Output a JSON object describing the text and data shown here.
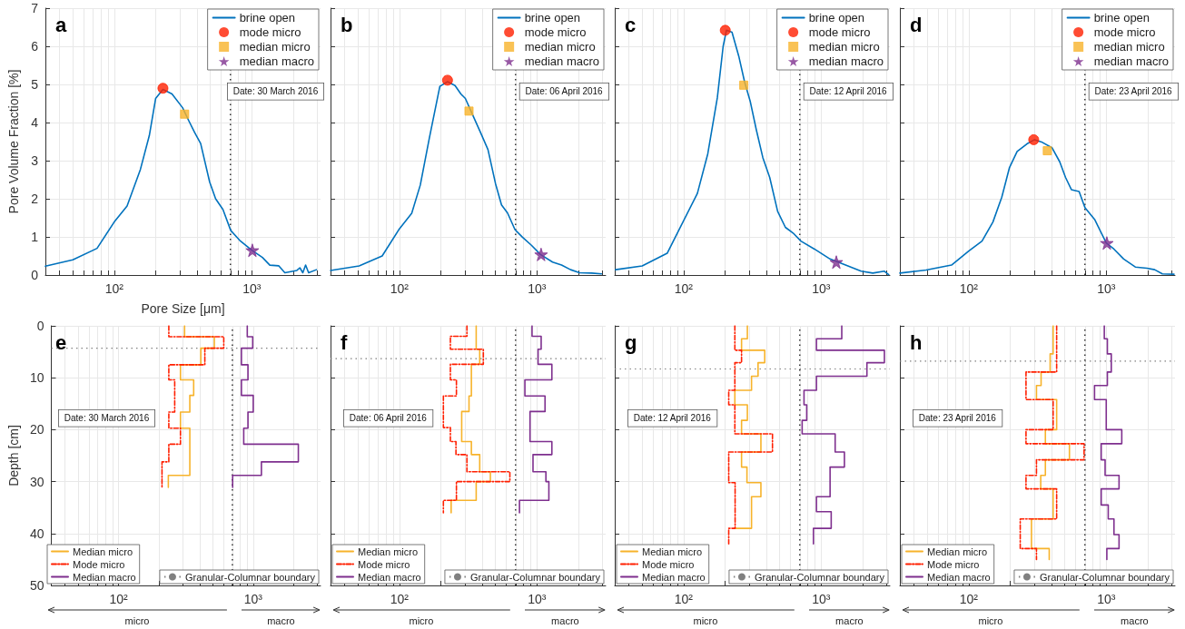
{
  "chart_data": [
    {
      "type": "line",
      "title": "a",
      "xlabel": "Pore Size [μm]",
      "ylabel": "Pore Volume Fraction [%]",
      "log": "x",
      "grid": true,
      "legend": "top right",
      "xlim": [
        31.6,
        3162
      ],
      "ylim": [
        0,
        7
      ],
      "xticks": [
        {
          "value": 40,
          "label": null
        },
        {
          "value": 50,
          "label": null
        },
        {
          "value": 60,
          "label": null
        },
        {
          "value": 70,
          "label": null
        },
        {
          "value": 80,
          "label": null
        },
        {
          "value": 90,
          "label": null
        },
        {
          "value": 100,
          "label": "10²"
        },
        {
          "value": 200,
          "label": null
        },
        {
          "value": 300,
          "label": null
        },
        {
          "value": 400,
          "label": null
        },
        {
          "value": 500,
          "label": null
        },
        {
          "value": 600,
          "label": null
        },
        {
          "value": 700,
          "label": null
        },
        {
          "value": 800,
          "label": null
        },
        {
          "value": 900,
          "label": null
        },
        {
          "value": 1000,
          "label": "10³"
        },
        {
          "value": 2000,
          "label": null
        },
        {
          "value": 3000,
          "label": null
        }
      ],
      "yticks": [
        0,
        1,
        2,
        3,
        4,
        5,
        6,
        7
      ],
      "series": [
        {
          "name": "brine open",
          "color": "#0072bd",
          "marker": "none",
          "x": [
            31.6,
            50,
            75,
            100,
            124,
            155,
            180,
            200,
            226,
            263,
            314,
            347,
            384,
            425,
            494,
            546,
            617,
            703,
            817,
            1000,
            1195,
            1353,
            1574,
            1740,
            2128,
            2237,
            2350,
            2463,
            2590,
            2950
          ],
          "values": [
            0.23,
            0.4,
            0.7,
            1.39,
            1.81,
            2.77,
            3.66,
            4.63,
            4.87,
            4.75,
            4.39,
            4.06,
            3.74,
            3.45,
            2.44,
            2.0,
            1.72,
            1.17,
            0.91,
            0.65,
            0.46,
            0.26,
            0.24,
            0.06,
            0.12,
            0.19,
            0.06,
            0.26,
            0.06,
            0.14
          ]
        },
        {
          "name": "mode micro",
          "type": "scatter",
          "color": "#ff1f00",
          "marker": "circle",
          "x": [
            226
          ],
          "values": [
            4.9
          ]
        },
        {
          "name": "median micro",
          "type": "scatter",
          "color": "#f7b32b",
          "marker": "square",
          "x": [
            325
          ],
          "values": [
            4.22
          ]
        },
        {
          "name": "median macro",
          "type": "scatter",
          "color": "#7e2f8e",
          "marker": "star",
          "x": [
            1010
          ],
          "values": [
            0.65
          ]
        }
      ],
      "ref_lines": [
        {
          "axis": "x",
          "value": 700,
          "color": "#000000",
          "line_style": "dotted"
        }
      ],
      "annotations": [
        "Date: 30 March 2016"
      ]
    },
    {
      "type": "line",
      "title": "b",
      "log": "x",
      "grid": true,
      "legend": "top right",
      "tick_labels": "x",
      "xlim": [
        31.6,
        3162
      ],
      "ylim": [
        0,
        7
      ],
      "xticks": [
        {
          "value": 40,
          "label": null
        },
        {
          "value": 50,
          "label": null
        },
        {
          "value": 60,
          "label": null
        },
        {
          "value": 70,
          "label": null
        },
        {
          "value": 80,
          "label": null
        },
        {
          "value": 90,
          "label": null
        },
        {
          "value": 100,
          "label": "10²"
        },
        {
          "value": 200,
          "label": null
        },
        {
          "value": 300,
          "label": null
        },
        {
          "value": 400,
          "label": null
        },
        {
          "value": 500,
          "label": null
        },
        {
          "value": 600,
          "label": null
        },
        {
          "value": 700,
          "label": null
        },
        {
          "value": 800,
          "label": null
        },
        {
          "value": 900,
          "label": null
        },
        {
          "value": 1000,
          "label": "10³"
        },
        {
          "value": 2000,
          "label": null
        },
        {
          "value": 3000,
          "label": null
        }
      ],
      "yticks": [
        0,
        1,
        2,
        3,
        4,
        5,
        6,
        7
      ],
      "series": [
        {
          "name": "brine open",
          "color": "#0072bd",
          "marker": "none",
          "x": [
            31.6,
            51,
            75,
            100,
            123,
            142,
            165,
            197,
            224,
            254,
            280,
            302,
            343,
            389,
            441,
            500,
            553,
            611,
            693,
            786,
            913,
            1062,
            1300,
            1511,
            1757,
            2043,
            2500,
            2950
          ],
          "values": [
            0.12,
            0.24,
            0.5,
            1.21,
            1.62,
            2.36,
            3.58,
            4.95,
            5.07,
            4.97,
            4.75,
            4.63,
            4.18,
            3.74,
            3.29,
            2.4,
            1.84,
            1.63,
            1.19,
            0.99,
            0.78,
            0.54,
            0.34,
            0.26,
            0.14,
            0.06,
            0.05,
            0.03
          ]
        },
        {
          "name": "mode micro",
          "type": "scatter",
          "color": "#ff1f00",
          "marker": "circle",
          "x": [
            224
          ],
          "values": [
            5.11
          ]
        },
        {
          "name": "median micro",
          "type": "scatter",
          "color": "#f7b32b",
          "marker": "square",
          "x": [
            321
          ],
          "values": [
            4.3
          ]
        },
        {
          "name": "median macro",
          "type": "scatter",
          "color": "#7e2f8e",
          "marker": "star",
          "x": [
            1073
          ],
          "values": [
            0.54
          ]
        }
      ],
      "ref_lines": [
        {
          "axis": "x",
          "value": 700,
          "color": "#000000",
          "line_style": "dotted"
        }
      ],
      "annotations": [
        "Date: 06 April 2016"
      ]
    },
    {
      "type": "line",
      "title": "c",
      "log": "x",
      "grid": true,
      "legend": "top right",
      "tick_labels": "x",
      "xlim": [
        31.6,
        3162
      ],
      "ylim": [
        0,
        7
      ],
      "xticks": [
        {
          "value": 40,
          "label": null
        },
        {
          "value": 50,
          "label": null
        },
        {
          "value": 60,
          "label": null
        },
        {
          "value": 70,
          "label": null
        },
        {
          "value": 80,
          "label": null
        },
        {
          "value": 90,
          "label": null
        },
        {
          "value": 100,
          "label": "10²"
        },
        {
          "value": 200,
          "label": null
        },
        {
          "value": 300,
          "label": null
        },
        {
          "value": 400,
          "label": null
        },
        {
          "value": 500,
          "label": null
        },
        {
          "value": 600,
          "label": null
        },
        {
          "value": 700,
          "label": null
        },
        {
          "value": 800,
          "label": null
        },
        {
          "value": 900,
          "label": null
        },
        {
          "value": 1000,
          "label": "10³"
        },
        {
          "value": 2000,
          "label": null
        },
        {
          "value": 3000,
          "label": null
        }
      ],
      "yticks": [
        0,
        1,
        2,
        3,
        4,
        5,
        6,
        7
      ],
      "series": [
        {
          "name": "brine open",
          "color": "#0072bd",
          "marker": "none",
          "x": [
            32,
            50,
            76,
            126,
            150,
            176,
            194,
            205,
            225,
            252,
            278,
            306,
            338,
            377,
            423,
            483,
            550,
            626,
            713,
            895,
            1161,
            1507,
            1954,
            2376,
            2884,
            3100
          ],
          "values": [
            0.14,
            0.24,
            0.57,
            2.14,
            3.18,
            4.65,
            6.0,
            6.42,
            6.37,
            5.74,
            5.06,
            4.54,
            3.81,
            3.08,
            2.56,
            1.67,
            1.25,
            1.1,
            0.89,
            0.68,
            0.42,
            0.26,
            0.1,
            0.05,
            0.1,
            0.01
          ]
        },
        {
          "name": "mode micro",
          "type": "scatter",
          "color": "#ff1f00",
          "marker": "circle",
          "x": [
            201
          ],
          "values": [
            6.42
          ]
        },
        {
          "name": "median micro",
          "type": "scatter",
          "color": "#f7b32b",
          "marker": "square",
          "x": [
            274
          ],
          "values": [
            4.98
          ]
        },
        {
          "name": "median macro",
          "type": "scatter",
          "color": "#7e2f8e",
          "marker": "star",
          "x": [
            1290
          ],
          "values": [
            0.34
          ]
        }
      ],
      "ref_lines": [
        {
          "axis": "x",
          "value": 700,
          "color": "#000000",
          "line_style": "dotted"
        }
      ],
      "annotations": [
        "Date: 12 April 2016"
      ]
    },
    {
      "type": "line",
      "title": "d",
      "log": "x",
      "grid": true,
      "legend": "top right",
      "tick_labels": "x",
      "xlim": [
        31.6,
        3162
      ],
      "ylim": [
        0,
        7
      ],
      "xticks": [
        {
          "value": 40,
          "label": null
        },
        {
          "value": 50,
          "label": null
        },
        {
          "value": 60,
          "label": null
        },
        {
          "value": 70,
          "label": null
        },
        {
          "value": 80,
          "label": null
        },
        {
          "value": 90,
          "label": null
        },
        {
          "value": 100,
          "label": "10²"
        },
        {
          "value": 200,
          "label": null
        },
        {
          "value": 300,
          "label": null
        },
        {
          "value": 400,
          "label": null
        },
        {
          "value": 500,
          "label": null
        },
        {
          "value": 600,
          "label": null
        },
        {
          "value": 700,
          "label": null
        },
        {
          "value": 800,
          "label": null
        },
        {
          "value": 900,
          "label": null
        },
        {
          "value": 1000,
          "label": "10³"
        },
        {
          "value": 2000,
          "label": null
        },
        {
          "value": 3000,
          "label": null
        }
      ],
      "yticks": [
        0,
        1,
        2,
        3,
        4,
        5,
        6,
        7
      ],
      "series": [
        {
          "name": "brine open",
          "color": "#0072bd",
          "marker": "none",
          "x": [
            31.6,
            49,
            75,
            100,
            125,
            150,
            174,
            198,
            225,
            265,
            301,
            343,
            403,
            459,
            506,
            558,
            635,
            700,
            823,
            1000,
            1138,
            1339,
            1627,
            1976,
            2250,
            2560,
            3110
          ],
          "values": [
            0.05,
            0.13,
            0.26,
            0.63,
            0.89,
            1.39,
            2.04,
            2.82,
            3.24,
            3.44,
            3.55,
            3.48,
            3.34,
            2.97,
            2.56,
            2.24,
            2.19,
            1.77,
            1.46,
            0.84,
            0.68,
            0.42,
            0.21,
            0.18,
            0.14,
            0.03,
            0.02
          ]
        },
        {
          "name": "mode micro",
          "type": "scatter",
          "color": "#ff1f00",
          "marker": "circle",
          "x": [
            297
          ],
          "values": [
            3.55
          ]
        },
        {
          "name": "median micro",
          "type": "scatter",
          "color": "#f7b32b",
          "marker": "square",
          "x": [
            373
          ],
          "values": [
            3.26
          ]
        },
        {
          "name": "median macro",
          "type": "scatter",
          "color": "#7e2f8e",
          "marker": "star",
          "x": [
            1010
          ],
          "values": [
            0.84
          ]
        }
      ],
      "ref_lines": [
        {
          "axis": "x",
          "value": 700,
          "color": "#000000",
          "line_style": "dotted"
        }
      ],
      "annotations": [
        "Date: 23 April 2016"
      ]
    },
    {
      "type": "line",
      "title": "e",
      "ylabel": "Depth [cm]",
      "log": "x",
      "grid": true,
      "legend": "bottom",
      "xlim": [
        31.6,
        3162
      ],
      "ylim": [
        50,
        0
      ],
      "xticks": [
        {
          "value": 40,
          "label": null
        },
        {
          "value": 50,
          "label": null
        },
        {
          "value": 60,
          "label": null
        },
        {
          "value": 70,
          "label": null
        },
        {
          "value": 80,
          "label": null
        },
        {
          "value": 90,
          "label": null
        },
        {
          "value": 100,
          "label": "10²"
        },
        {
          "value": 200,
          "label": null
        },
        {
          "value": 300,
          "label": null
        },
        {
          "value": 400,
          "label": null
        },
        {
          "value": 500,
          "label": null
        },
        {
          "value": 600,
          "label": null
        },
        {
          "value": 700,
          "label": null
        },
        {
          "value": 800,
          "label": null
        },
        {
          "value": 900,
          "label": null
        },
        {
          "value": 1000,
          "label": "10³"
        },
        {
          "value": 2000,
          "label": null
        },
        {
          "value": 3000,
          "label": null
        }
      ],
      "yticks": [
        0,
        10,
        20,
        30,
        40,
        50
      ],
      "series": [
        {
          "name": "Median micro",
          "color": "#f7b32b",
          "line_style": "solid",
          "x": [
            309,
            309,
            514,
            514,
            408,
            408,
            288,
            288,
            361,
            361,
            338,
            338,
            288,
            288,
            338,
            338,
            234,
            234
          ],
          "values": [
            0,
            2.1,
            2.1,
            4.3,
            4.3,
            7.5,
            7.5,
            10.4,
            10.4,
            13.4,
            13.4,
            16.6,
            16.6,
            19.7,
            19.7,
            28.8,
            28.8,
            31.1
          ]
        },
        {
          "name": "Mode micro",
          "color": "#ff1f00",
          "line_style": "dashed",
          "x": [
            236,
            236,
            604,
            604,
            437,
            437,
            236,
            236,
            261,
            261,
            236,
            236,
            288,
            288,
            236,
            236,
            210,
            210
          ],
          "values": [
            0,
            2.1,
            2.1,
            4.3,
            4.3,
            7.5,
            7.5,
            10.4,
            10.4,
            16.6,
            16.6,
            19.7,
            19.7,
            22.8,
            22.8,
            26.2,
            26.2,
            31.1
          ]
        },
        {
          "name": "Median macro",
          "color": "#7e2f8e",
          "line_style": "solid",
          "x": [
            903,
            903,
            991,
            991,
            817,
            817,
            914,
            914,
            817,
            817,
            1000,
            1000,
            914,
            914,
            850,
            850,
            2163,
            2163,
            1150,
            1150,
            703,
            703
          ],
          "values": [
            0,
            2.1,
            2.1,
            4.3,
            4.3,
            7.5,
            7.5,
            10.4,
            10.4,
            13.4,
            13.4,
            16.6,
            16.6,
            19.7,
            19.7,
            22.8,
            22.8,
            26.2,
            26.2,
            28.8,
            28.8,
            31.1
          ]
        }
      ],
      "ref_lines": [
        {
          "axis": "x",
          "value": 700,
          "color": "#000000",
          "line_style": "dotted"
        },
        {
          "axis": "y",
          "value": 4.3,
          "label": "Granular-Columnar boundary",
          "color": "#808080",
          "line_style": "dotted"
        }
      ],
      "annotations": [
        "Date: 30 March 2016",
        "micro",
        "macro"
      ]
    },
    {
      "type": "line",
      "title": "f",
      "log": "x",
      "grid": true,
      "legend": "bottom",
      "tick_labels": "x",
      "xlim": [
        31.6,
        3162
      ],
      "ylim": [
        50,
        0
      ],
      "xticks": [
        {
          "value": 40,
          "label": null
        },
        {
          "value": 50,
          "label": null
        },
        {
          "value": 60,
          "label": null
        },
        {
          "value": 70,
          "label": null
        },
        {
          "value": 80,
          "label": null
        },
        {
          "value": 90,
          "label": null
        },
        {
          "value": 100,
          "label": "10²"
        },
        {
          "value": 200,
          "label": null
        },
        {
          "value": 300,
          "label": null
        },
        {
          "value": 400,
          "label": null
        },
        {
          "value": 500,
          "label": null
        },
        {
          "value": 600,
          "label": null
        },
        {
          "value": 700,
          "label": null
        },
        {
          "value": 800,
          "label": null
        },
        {
          "value": 900,
          "label": null
        },
        {
          "value": 1000,
          "label": "10³"
        },
        {
          "value": 2000,
          "label": null
        },
        {
          "value": 3000,
          "label": null
        }
      ],
      "yticks": [
        0,
        10,
        20,
        30,
        40,
        50
      ],
      "series": [
        {
          "name": "Median micro",
          "color": "#f7b32b",
          "line_style": "solid",
          "x": [
            362,
            362,
            384,
            384,
            334,
            334,
            321,
            321,
            284,
            284,
            334,
            334,
            384,
            384,
            459,
            459,
            362,
            362,
            238,
            238
          ],
          "values": [
            0,
            4.5,
            4.5,
            7.4,
            7.4,
            13.5,
            13.5,
            16.5,
            16.5,
            22.3,
            22.3,
            24.8,
            24.8,
            28.1,
            28.1,
            30,
            30,
            33.6,
            33.6,
            36
          ]
        },
        {
          "name": "Mode micro",
          "color": "#ff1f00",
          "line_style": "dashed",
          "x": [
            310,
            310,
            235,
            235,
            408,
            408,
            235,
            235,
            260,
            260,
            209,
            209,
            235,
            235,
            258,
            258,
            310,
            310,
            636,
            636,
            260,
            260,
            209,
            209
          ],
          "values": [
            0,
            2,
            2,
            4.5,
            4.5,
            7.4,
            7.4,
            10.4,
            10.4,
            13.5,
            13.5,
            19.6,
            19.6,
            22.3,
            22.3,
            24.8,
            24.8,
            28.1,
            28.1,
            30,
            30,
            33.6,
            33.6,
            36
          ]
        },
        {
          "name": "Median macro",
          "color": "#7e2f8e",
          "line_style": "solid",
          "x": [
            922,
            922,
            1074,
            1074,
            1020,
            1020,
            1285,
            1285,
            818,
            818,
            1146,
            1146,
            891,
            891,
            1285,
            1285,
            937,
            937,
            1163,
            1163,
            1222,
            1222,
            747,
            747
          ],
          "values": [
            0,
            2,
            2,
            4.5,
            4.5,
            7.4,
            7.4,
            10.4,
            10.4,
            13.5,
            13.5,
            16.5,
            16.5,
            22.3,
            22.3,
            24.8,
            24.8,
            28.1,
            28.1,
            30,
            30,
            33.6,
            33.6,
            36
          ]
        }
      ],
      "ref_lines": [
        {
          "axis": "x",
          "value": 700,
          "color": "#000000",
          "line_style": "dotted"
        },
        {
          "axis": "y",
          "value": 6.3,
          "label": "Granular-Columnar boundary",
          "color": "#808080",
          "line_style": "dotted"
        }
      ],
      "annotations": [
        "Date: 06 April 2016",
        "micro",
        "macro"
      ]
    },
    {
      "type": "line",
      "title": "g",
      "log": "x",
      "grid": true,
      "legend": "bottom",
      "tick_labels": "x",
      "xlim": [
        31.6,
        3162
      ],
      "ylim": [
        50,
        0
      ],
      "xticks": [
        {
          "value": 40,
          "label": null
        },
        {
          "value": 50,
          "label": null
        },
        {
          "value": 60,
          "label": null
        },
        {
          "value": 70,
          "label": null
        },
        {
          "value": 80,
          "label": null
        },
        {
          "value": 90,
          "label": null
        },
        {
          "value": 100,
          "label": "10²"
        },
        {
          "value": 200,
          "label": null
        },
        {
          "value": 300,
          "label": null
        },
        {
          "value": 400,
          "label": null
        },
        {
          "value": 500,
          "label": null
        },
        {
          "value": 600,
          "label": null
        },
        {
          "value": 700,
          "label": null
        },
        {
          "value": 800,
          "label": null
        },
        {
          "value": 900,
          "label": null
        },
        {
          "value": 1000,
          "label": "10³"
        },
        {
          "value": 2000,
          "label": null
        },
        {
          "value": 3000,
          "label": null
        }
      ],
      "yticks": [
        0,
        10,
        20,
        30,
        40,
        50
      ],
      "series": [
        {
          "name": "Median micro",
          "color": "#f7b32b",
          "line_style": "solid",
          "x": [
            291,
            291,
            264,
            264,
            389,
            389,
            348,
            348,
            312,
            312,
            236,
            236,
            291,
            291,
            264,
            264,
            365,
            365,
            264,
            264,
            289,
            289,
            365,
            365,
            312,
            312,
            236
          ],
          "values": [
            0,
            2.5,
            2.5,
            4.7,
            4.7,
            7.1,
            7.1,
            9.7,
            9.7,
            12.4,
            12.4,
            15.2,
            15.2,
            18.2,
            18.2,
            20.8,
            20.8,
            24.3,
            24.3,
            27.2,
            27.2,
            30.2,
            30.2,
            32.9,
            32.9,
            39,
            39
          ]
        },
        {
          "name": "Mode micro",
          "color": "#ff1f00",
          "line_style": "dashed",
          "x": [
            236,
            236,
            264,
            264,
            236,
            236,
            213,
            213,
            236,
            236,
            443,
            443,
            213,
            213,
            237,
            237,
            213,
            213
          ],
          "values": [
            0,
            4.7,
            4.7,
            7.1,
            7.1,
            12.4,
            12.4,
            15.2,
            15.2,
            20.8,
            20.8,
            24.3,
            24.3,
            30.2,
            30.2,
            39,
            39,
            42
          ]
        },
        {
          "name": "Median macro",
          "color": "#7e2f8e",
          "line_style": "solid",
          "x": [
            1413,
            1413,
            925,
            925,
            2885,
            2885,
            2153,
            2153,
            925,
            925,
            751,
            751,
            786,
            786,
            728,
            728,
            1265,
            1265,
            1477,
            1477,
            1162,
            1162,
            925,
            925,
            1184,
            1184,
            879,
            879
          ],
          "values": [
            0,
            2.5,
            2.5,
            4.7,
            4.7,
            7.1,
            7.1,
            9.7,
            9.7,
            12.4,
            12.4,
            15.2,
            15.2,
            18.2,
            18.2,
            20.8,
            20.8,
            24.3,
            24.3,
            27.2,
            27.2,
            32.9,
            32.9,
            35.8,
            35.8,
            39,
            39,
            42
          ]
        }
      ],
      "ref_lines": [
        {
          "axis": "x",
          "value": 700,
          "color": "#000000",
          "line_style": "dotted"
        },
        {
          "axis": "y",
          "value": 8.3,
          "label": "Granular-Columnar boundary",
          "color": "#808080",
          "line_style": "dotted"
        }
      ],
      "annotations": [
        "Date: 12 April 2016",
        "micro",
        "macro"
      ]
    },
    {
      "type": "line",
      "title": "h",
      "log": "x",
      "grid": true,
      "legend": "bottom",
      "tick_labels": "x",
      "xlim": [
        31.6,
        3162
      ],
      "ylim": [
        50,
        0
      ],
      "xticks": [
        {
          "value": 40,
          "label": null
        },
        {
          "value": 50,
          "label": null
        },
        {
          "value": 60,
          "label": null
        },
        {
          "value": 70,
          "label": null
        },
        {
          "value": 80,
          "label": null
        },
        {
          "value": 90,
          "label": null
        },
        {
          "value": 100,
          "label": "10²"
        },
        {
          "value": 200,
          "label": null
        },
        {
          "value": 300,
          "label": null
        },
        {
          "value": 400,
          "label": null
        },
        {
          "value": 500,
          "label": null
        },
        {
          "value": 600,
          "label": null
        },
        {
          "value": 700,
          "label": null
        },
        {
          "value": 800,
          "label": null
        },
        {
          "value": 900,
          "label": null
        },
        {
          "value": 1000,
          "label": "10³"
        },
        {
          "value": 2000,
          "label": null
        },
        {
          "value": 3000,
          "label": null
        }
      ],
      "yticks": [
        0,
        10,
        20,
        30,
        40,
        50
      ],
      "series": [
        {
          "name": "Median micro",
          "color": "#f7b32b",
          "line_style": "solid",
          "x": [
            411,
            411,
            391,
            391,
            336,
            336,
            311,
            311,
            436,
            436,
            361,
            361,
            540,
            540,
            361,
            361,
            334,
            334,
            411,
            411,
            286,
            286,
            385,
            385
          ],
          "values": [
            0,
            5.4,
            5.4,
            8.9,
            8.9,
            11.5,
            11.5,
            14.2,
            14.2,
            20,
            20,
            22.7,
            22.7,
            25.8,
            25.8,
            28.8,
            28.8,
            31.4,
            31.4,
            37.2,
            37.2,
            42.9,
            42.9,
            45
          ]
        },
        {
          "name": "Mode micro",
          "color": "#ff1f00",
          "line_style": "dashed",
          "x": [
            436,
            436,
            261,
            261,
            411,
            411,
            261,
            261,
            690,
            690,
            311,
            311,
            261,
            261,
            436,
            436,
            237,
            237,
            311,
            311
          ],
          "values": [
            0,
            8.9,
            8.9,
            14.2,
            14.2,
            20,
            20,
            22.7,
            22.7,
            25.8,
            25.8,
            28.8,
            28.8,
            31.4,
            31.4,
            37.2,
            37.2,
            42.9,
            42.9,
            45
          ]
        },
        {
          "name": "Median macro",
          "color": "#7e2f8e",
          "line_style": "solid",
          "x": [
            968,
            968,
            1019,
            1019,
            1088,
            1088,
            1019,
            1019,
            822,
            822,
            1000,
            1000,
            1297,
            1297,
            919,
            919,
            981,
            981,
            1239,
            1239,
            919,
            919,
            1034,
            1034,
            1138,
            1138,
            1239,
            1239,
            1010,
            1010
          ],
          "values": [
            0,
            2.5,
            2.5,
            5.4,
            5.4,
            8.9,
            8.9,
            11.5,
            11.5,
            14.2,
            14.2,
            20,
            20,
            22.7,
            22.7,
            25.8,
            25.8,
            28.8,
            28.8,
            31.4,
            31.4,
            34.5,
            34.5,
            37.2,
            37.2,
            40.2,
            40.2,
            42.9,
            42.9,
            45
          ]
        }
      ],
      "ref_lines": [
        {
          "axis": "x",
          "value": 700,
          "color": "#000000",
          "line_style": "dotted"
        },
        {
          "axis": "y",
          "value": 6.8,
          "label": "Granular-Columnar boundary",
          "color": "#808080",
          "line_style": "dotted"
        }
      ],
      "annotations": [
        "Date: 23 April 2016",
        "micro",
        "macro"
      ]
    }
  ]
}
